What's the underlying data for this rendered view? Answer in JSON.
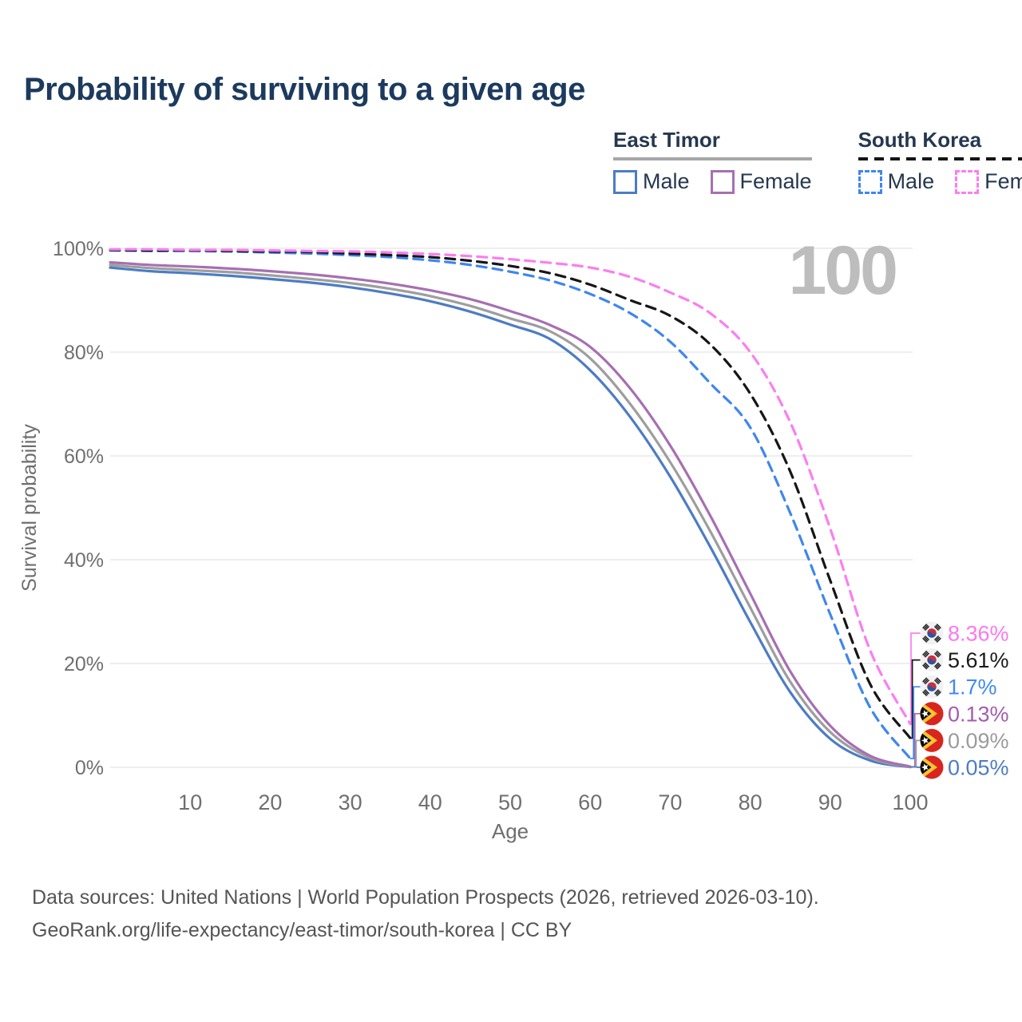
{
  "legend": {
    "groups": [
      {
        "label": "East Timor",
        "line_style": "solid",
        "underline_color": "#a6a6a6",
        "items": [
          {
            "label": "Male",
            "color": "#4d7cc4"
          },
          {
            "label": "Female",
            "color": "#a76fb2"
          }
        ]
      },
      {
        "label": "South Korea",
        "line_style": "dashed",
        "underline_color": "#141414",
        "items": [
          {
            "label": "Male",
            "color": "#3f86f0"
          },
          {
            "label": "Female",
            "color": "#fb7ef0"
          }
        ]
      }
    ]
  },
  "footer": {
    "line1": "Data sources: United Nations | World Population Prospects (2026, retrieved 2026-03-10).",
    "line2": "GeoRank.org/life-expectancy/east-timor/south-korea | CC BY"
  },
  "chart_data": {
    "type": "line",
    "title": "Probability of surviving to a given age",
    "xlabel": "Age",
    "ylabel": "Survival probability",
    "xlim": [
      0,
      100
    ],
    "ylim": [
      0,
      100
    ],
    "x_ticks": [
      10,
      20,
      30,
      40,
      50,
      60,
      70,
      80,
      90,
      100
    ],
    "y_ticks": [
      "0%",
      "20%",
      "40%",
      "60%",
      "80%",
      "100%"
    ],
    "grid": "horizontal",
    "legend_position": "top-right",
    "age_counter": "100",
    "x": [
      0,
      5,
      10,
      15,
      20,
      25,
      30,
      35,
      40,
      45,
      50,
      55,
      60,
      65,
      70,
      75,
      80,
      85,
      90,
      95,
      100
    ],
    "series": [
      {
        "name": "South Korea Female",
        "country": "South Korea",
        "sex": "Female",
        "color": "#fb7ef0",
        "dash": true,
        "flag": "kr",
        "end_label": "8.36%",
        "label_color": "#fb78ee",
        "values": [
          99.8,
          99.8,
          99.7,
          99.7,
          99.6,
          99.5,
          99.4,
          99.2,
          98.9,
          98.5,
          97.9,
          97.2,
          96.3,
          94.5,
          91.5,
          87.5,
          80.0,
          66.5,
          46.0,
          22.5,
          8.36
        ]
      },
      {
        "name": "South Korea Both sexes",
        "country": "South Korea",
        "sex": "Both",
        "color": "#161616",
        "dash": true,
        "flag": "kr",
        "end_label": "5.61%",
        "label_color": "#1a1a1a",
        "values": [
          99.7,
          99.6,
          99.6,
          99.5,
          99.4,
          99.3,
          99.0,
          98.7,
          98.3,
          97.6,
          96.6,
          95.2,
          93.0,
          90.0,
          87.0,
          81.5,
          72.0,
          57.0,
          36.0,
          16.0,
          5.61
        ]
      },
      {
        "name": "South Korea Male",
        "country": "South Korea",
        "sex": "Male",
        "color": "#3f86f0",
        "dash": true,
        "flag": "kr",
        "end_label": "1.7%",
        "label_color": "#4189f4",
        "values": [
          99.6,
          99.5,
          99.5,
          99.4,
          99.2,
          99.0,
          98.7,
          98.3,
          97.7,
          96.8,
          95.5,
          93.8,
          91.2,
          87.5,
          82.0,
          74.0,
          65.5,
          49.0,
          29.5,
          11.5,
          1.7
        ]
      },
      {
        "name": "East Timor Female",
        "country": "East Timor",
        "sex": "Female",
        "color": "#a76fb2",
        "dash": false,
        "flag": "tl",
        "end_label": "0.13%",
        "label_color": "#a55cad",
        "values": [
          97.3,
          96.8,
          96.5,
          96.1,
          95.6,
          95.0,
          94.2,
          93.2,
          91.9,
          90.2,
          87.9,
          85.2,
          81.0,
          73.0,
          62.0,
          48.5,
          33.5,
          18.5,
          8.0,
          2.2,
          0.13
        ]
      },
      {
        "name": "East Timor Both sexes",
        "country": "East Timor",
        "sex": "Both",
        "color": "#9e9e9e",
        "dash": false,
        "flag": "tl",
        "end_label": "0.09%",
        "label_color": "#9b9b9b",
        "values": [
          96.8,
          96.2,
          95.8,
          95.4,
          94.8,
          94.1,
          93.3,
          92.2,
          90.8,
          88.9,
          86.5,
          84.0,
          78.8,
          70.0,
          58.8,
          45.5,
          30.8,
          16.5,
          6.8,
          1.8,
          0.09
        ]
      },
      {
        "name": "East Timor Male",
        "country": "East Timor",
        "sex": "Male",
        "color": "#4d7cc4",
        "dash": false,
        "flag": "tl",
        "end_label": "0.05%",
        "label_color": "#4d7cc4",
        "values": [
          96.3,
          95.6,
          95.2,
          94.7,
          94.1,
          93.4,
          92.5,
          91.3,
          89.8,
          87.8,
          85.3,
          82.5,
          76.5,
          67.5,
          56.0,
          42.5,
          28.0,
          14.5,
          5.5,
          1.3,
          0.05
        ]
      }
    ]
  }
}
